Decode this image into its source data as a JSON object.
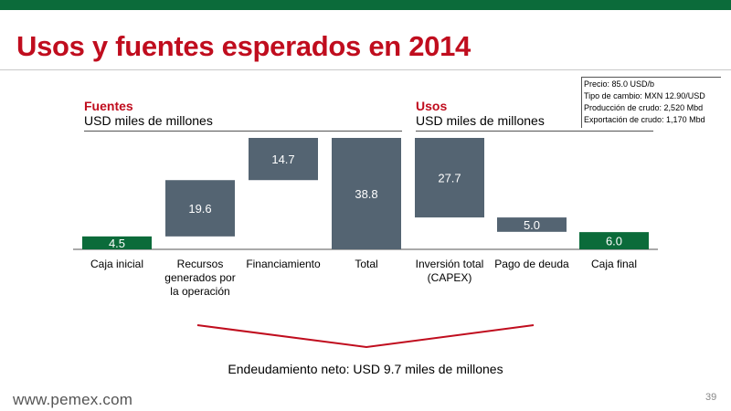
{
  "slide": {
    "title": "Usos y fuentes esperados en 2014",
    "assumptions": [
      "Precio: 85.0 USD/b",
      "Tipo de cambio: MXN 12.90/USD",
      "Producción de crudo: 2,520 Mbd",
      "Exportación de crudo: 1,170 Mbd"
    ],
    "sources_title": "Fuentes",
    "sources_subtitle": "USD miles de millones",
    "uses_title": "Usos",
    "uses_subtitle": "USD miles de millones",
    "net_debt_note": "Endeudamiento neto: USD 9.7 miles de millones",
    "footer_url": "www.pemex.com",
    "page_number": "39"
  },
  "colors": {
    "brand_green": "#0b6b3a",
    "title_red": "#c00d1e",
    "bar_slate": "#546472",
    "bar_green": "#0b6b3a"
  },
  "chart_data": {
    "type": "bar",
    "subtype": "waterfall",
    "categories": [
      "Caja inicial",
      "Recursos generados por la operación",
      "Financiamiento",
      "Total",
      "Inversión total (CAPEX)",
      "Pago de deuda",
      "Caja final"
    ],
    "label_lines": [
      [
        "Caja inicial"
      ],
      [
        "Recursos",
        "generados por",
        "la operación"
      ],
      [
        "Financiamiento"
      ],
      [
        "Total"
      ],
      [
        "Inversión total",
        "(CAPEX)"
      ],
      [
        "Pago de deuda"
      ],
      [
        "Caja final"
      ]
    ],
    "values": [
      4.5,
      19.6,
      14.7,
      38.8,
      27.7,
      5.0,
      6.0
    ],
    "value_labels": [
      "4.5",
      "19.6",
      "14.7",
      "38.8",
      "27.7",
      "5.0",
      "6.0"
    ],
    "bar_base": [
      0,
      4.5,
      24.1,
      0,
      11.1,
      6.1,
      0
    ],
    "bar_color": [
      "green",
      "slate",
      "slate",
      "slate",
      "slate",
      "slate",
      "green"
    ],
    "ylim": [
      0,
      38.8
    ],
    "grid": false,
    "title": "",
    "xlabel": "",
    "ylabel": ""
  }
}
